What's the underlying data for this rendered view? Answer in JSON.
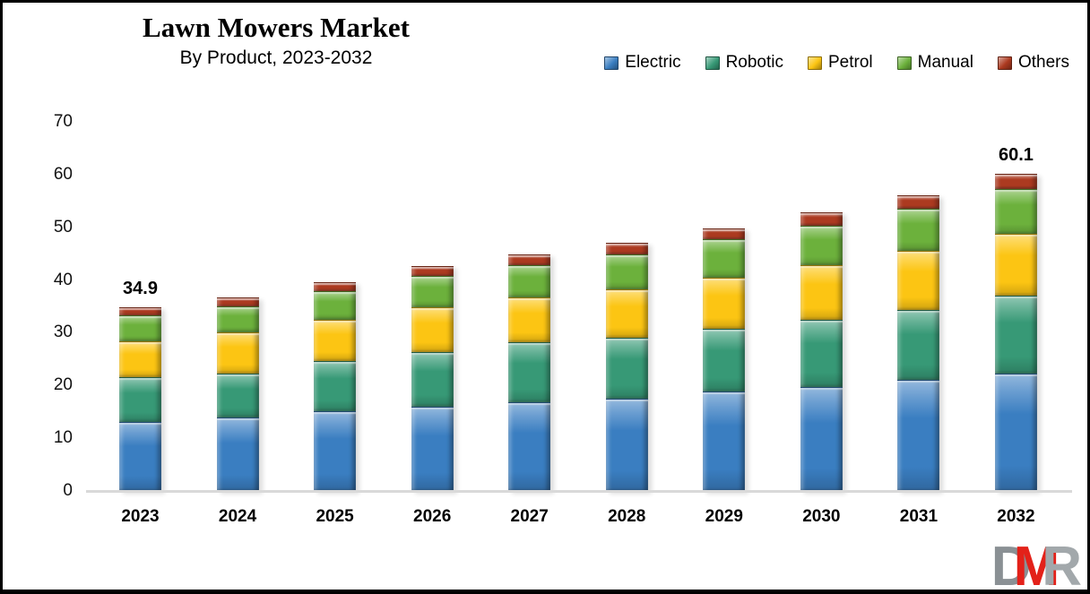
{
  "header": {
    "title": "Lawn Mowers Market",
    "subtitle": "By Product, 2023-2032"
  },
  "chart_data": {
    "type": "bar",
    "stacked": true,
    "title": "Lawn Mowers Market",
    "subtitle": "By Product, 2023-2032",
    "categories": [
      "2023",
      "2024",
      "2025",
      "2026",
      "2027",
      "2028",
      "2029",
      "2030",
      "2031",
      "2032"
    ],
    "series": [
      {
        "name": "Electric",
        "color": "#3a7ec1",
        "values": [
          13.3,
          14.0,
          15.3,
          16.1,
          17.0,
          17.7,
          19.0,
          19.8,
          21.2,
          22.4
        ]
      },
      {
        "name": "Robotic",
        "color": "#379976",
        "values": [
          8.5,
          8.5,
          9.6,
          10.5,
          11.4,
          11.5,
          11.9,
          12.8,
          13.3,
          14.8
        ]
      },
      {
        "name": "Petrol",
        "color": "#fcc513",
        "values": [
          6.8,
          7.7,
          7.8,
          8.4,
          8.5,
          9.2,
          9.7,
          10.4,
          11.2,
          11.7
        ]
      },
      {
        "name": "Manual",
        "color": "#6cb13c",
        "values": [
          4.8,
          5.0,
          5.3,
          5.9,
          6.1,
          6.5,
          7.3,
          7.4,
          8.0,
          8.5
        ]
      },
      {
        "name": "Others",
        "color": "#ac3a20",
        "values": [
          1.5,
          1.5,
          1.6,
          1.7,
          1.9,
          2.1,
          1.9,
          2.4,
          2.4,
          2.7
        ]
      }
    ],
    "totals": [
      34.9,
      36.7,
      39.6,
      42.6,
      44.9,
      47.0,
      49.8,
      52.8,
      56.1,
      60.1
    ],
    "data_labels": {
      "2023": "34.9",
      "2032": "60.1"
    },
    "ylim": [
      0,
      70
    ],
    "yticks": [
      0,
      10,
      20,
      30,
      40,
      50,
      60,
      70
    ],
    "legend_position": "top-right",
    "grid": false,
    "axis_color": "#d9d9d9"
  },
  "logo": {
    "letters": [
      "D",
      "M",
      "R"
    ]
  }
}
